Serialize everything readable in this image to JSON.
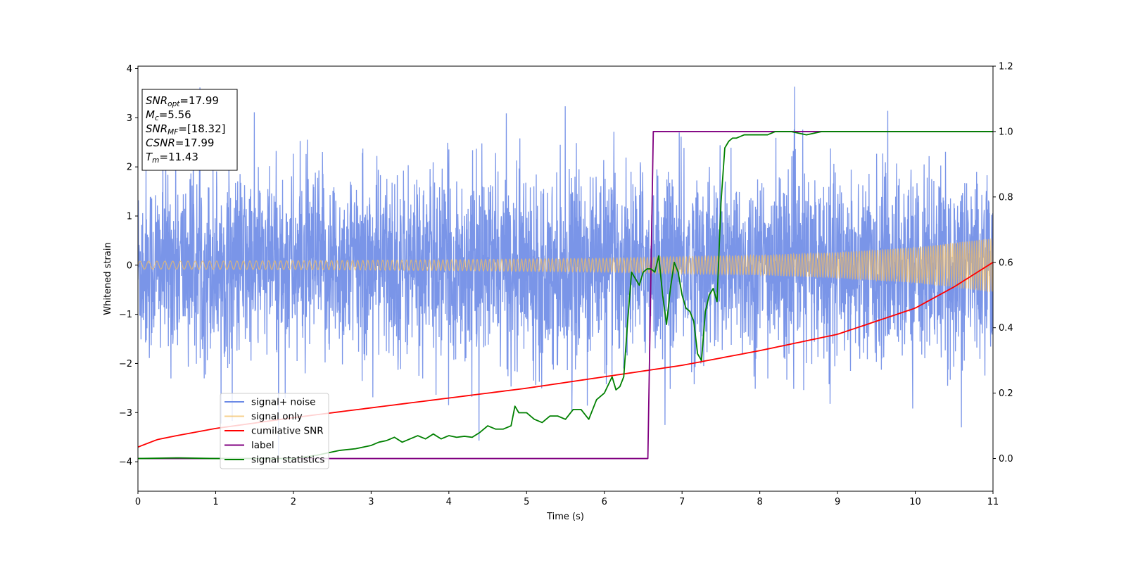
{
  "chart_data": {
    "type": "line",
    "xlabel": "Time (s)",
    "ylabel": "Whitened strain",
    "xlim": [
      0,
      11
    ],
    "ylim": [
      -4.6,
      4.05
    ],
    "y2lim": [
      -0.1,
      1.2
    ],
    "x_ticks": [
      "0",
      "1",
      "2",
      "3",
      "4",
      "5",
      "6",
      "7",
      "8",
      "9",
      "10",
      "11"
    ],
    "y_ticks": [
      "4",
      "3",
      "2",
      "1",
      "0",
      "−1",
      "−2",
      "−3",
      "−4"
    ],
    "y2_ticks": [
      "1.2",
      "1.0",
      "0.8",
      "0.6",
      "0.4",
      "0.2",
      "0.0"
    ],
    "grid": false,
    "legend_position": "lower-left",
    "info_box": [
      {
        "label": "SNR",
        "sub": "opt",
        "value": "=17.99"
      },
      {
        "label": "M",
        "sub": "c",
        "value": "=5.56"
      },
      {
        "label": "SNR",
        "sub": "MF",
        "value": "=[18.32]"
      },
      {
        "label": "CSNR",
        "sub": "",
        "value": "=17.99"
      },
      {
        "label": "T",
        "sub": "m",
        "value": "=11.43"
      }
    ],
    "series": [
      {
        "name": "signal+ noise",
        "axis": "left",
        "color": "#6b8ae6",
        "description_samples": "dense whitened noise, typical amplitude about ±1.5, spikes to about ±3.6",
        "std": 0.95
      },
      {
        "name": "signal only",
        "axis": "left",
        "color": "#f5bd5f",
        "envelope": {
          "x": [
            0,
            2,
            4,
            6,
            7,
            8,
            9,
            10,
            11
          ],
          "amp": [
            0.08,
            0.09,
            0.11,
            0.14,
            0.17,
            0.2,
            0.26,
            0.36,
            0.55
          ]
        }
      },
      {
        "name": "cumilative SNR",
        "axis": "right",
        "color": "#ff0000",
        "x": [
          0,
          0.25,
          0.5,
          1,
          2,
          3,
          4,
          5,
          6,
          7,
          8,
          9,
          10,
          10.5,
          11
        ],
        "y": [
          0.035,
          0.058,
          0.07,
          0.092,
          0.125,
          0.155,
          0.185,
          0.215,
          0.25,
          0.285,
          0.33,
          0.38,
          0.46,
          0.525,
          0.6
        ]
      },
      {
        "name": "label",
        "axis": "right",
        "color": "#800080",
        "x": [
          0,
          6.56,
          6.63,
          11
        ],
        "y": [
          0,
          0,
          1,
          1
        ]
      },
      {
        "name": "signal statistics",
        "axis": "right",
        "color": "#008000",
        "x": [
          0,
          0.5,
          1,
          1.5,
          2,
          2.3,
          2.6,
          2.8,
          3,
          3.1,
          3.2,
          3.3,
          3.4,
          3.5,
          3.6,
          3.7,
          3.8,
          3.9,
          4,
          4.1,
          4.2,
          4.3,
          4.4,
          4.5,
          4.6,
          4.7,
          4.8,
          4.85,
          4.9,
          5.0,
          5.05,
          5.1,
          5.2,
          5.3,
          5.4,
          5.5,
          5.6,
          5.7,
          5.8,
          5.9,
          6.0,
          6.1,
          6.15,
          6.2,
          6.25,
          6.3,
          6.35,
          6.4,
          6.45,
          6.5,
          6.55,
          6.6,
          6.65,
          6.7,
          6.75,
          6.8,
          6.85,
          6.9,
          6.95,
          7.0,
          7.05,
          7.1,
          7.15,
          7.2,
          7.25,
          7.3,
          7.35,
          7.4,
          7.45,
          7.5,
          7.55,
          7.6,
          7.65,
          7.7,
          7.8,
          7.9,
          8.0,
          8.1,
          8.2,
          8.3,
          8.4,
          8.5,
          8.6,
          8.7,
          8.8,
          8.9,
          9.0,
          9.2,
          9.4,
          9.6,
          9.8,
          10,
          10.5,
          11
        ],
        "y": [
          0,
          0.002,
          0,
          0,
          0,
          0.01,
          0.025,
          0.03,
          0.04,
          0.05,
          0.055,
          0.065,
          0.05,
          0.06,
          0.07,
          0.06,
          0.075,
          0.06,
          0.07,
          0.065,
          0.068,
          0.065,
          0.08,
          0.1,
          0.09,
          0.09,
          0.1,
          0.16,
          0.14,
          0.14,
          0.13,
          0.12,
          0.11,
          0.13,
          0.13,
          0.12,
          0.15,
          0.15,
          0.12,
          0.18,
          0.2,
          0.25,
          0.21,
          0.22,
          0.25,
          0.42,
          0.57,
          0.55,
          0.53,
          0.57,
          0.58,
          0.58,
          0.57,
          0.62,
          0.5,
          0.41,
          0.52,
          0.6,
          0.57,
          0.5,
          0.46,
          0.45,
          0.42,
          0.32,
          0.3,
          0.45,
          0.5,
          0.52,
          0.48,
          0.78,
          0.95,
          0.97,
          0.98,
          0.98,
          0.99,
          0.99,
          0.99,
          0.99,
          1.0,
          1.0,
          1.0,
          0.995,
          0.99,
          0.995,
          1.0,
          1.0,
          1.0,
          1.0,
          1.0,
          1.0,
          1.0,
          1.0,
          1.0,
          1.0
        ]
      }
    ]
  }
}
